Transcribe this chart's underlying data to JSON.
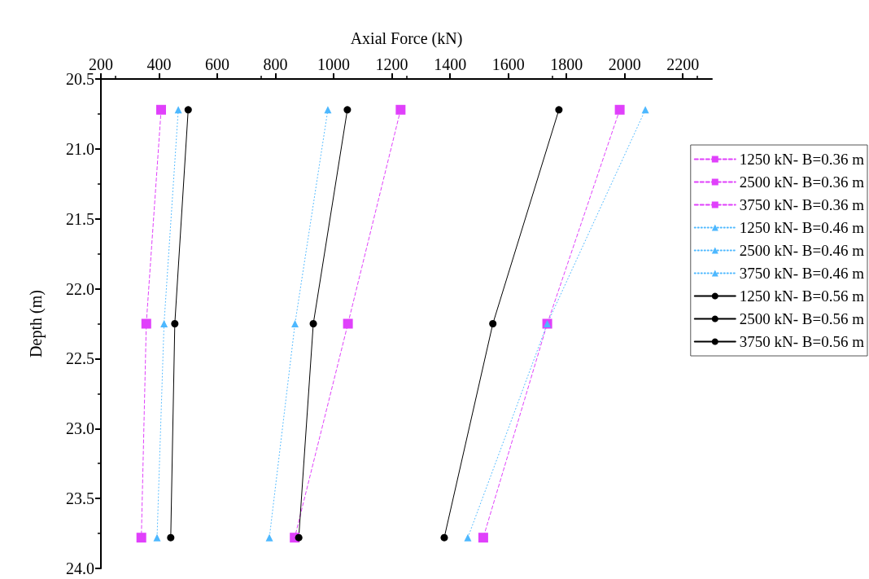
{
  "chart_data": {
    "type": "line",
    "xlabel": "Axial Force (kN)",
    "ylabel": "Depth (m)",
    "xlim": [
      200,
      2300
    ],
    "xticks": [
      200,
      400,
      600,
      800,
      1000,
      1200,
      1400,
      1600,
      1800,
      2000,
      2200
    ],
    "ylim": [
      24.0,
      20.5
    ],
    "yticks": [
      {
        "value": 20.5,
        "label": "20.5"
      },
      {
        "value": 21,
        "label": "21.0"
      },
      {
        "value": 21.5,
        "label": "21.5"
      },
      {
        "value": 22,
        "label": "22.0"
      },
      {
        "value": 22.5,
        "label": "22.5"
      },
      {
        "value": 23,
        "label": "23.0"
      },
      {
        "value": 23.5,
        "label": "23.5"
      },
      {
        "value": 24,
        "label": "24.0"
      }
    ],
    "grid": false,
    "legend": "right",
    "series": [
      {
        "name": "1250 kN- B=0.36 m",
        "color": "#e040fb",
        "marker": "square",
        "line_style": "dashed",
        "x": [
          407,
          356,
          339
        ],
        "values": [
          20.72,
          22.25,
          23.78
        ]
      },
      {
        "name": "2500 kN- B=0.36 m",
        "color": "#e040fb",
        "marker": "square",
        "line_style": "dashed",
        "x": [
          1230,
          1049,
          866
        ],
        "values": [
          20.72,
          22.25,
          23.78
        ]
      },
      {
        "name": "3750 kN- B=0.36 m",
        "color": "#e040fb",
        "marker": "square",
        "line_style": "dashed",
        "x": [
          1983,
          1734,
          1514
        ],
        "values": [
          20.72,
          22.25,
          23.78
        ]
      },
      {
        "name": "1250 kN- B=0.46 m",
        "color": "#4db8ff",
        "marker": "triangle",
        "line_style": "dotted",
        "x": [
          466,
          417,
          393
        ],
        "values": [
          20.72,
          22.25,
          23.78
        ]
      },
      {
        "name": "2500 kN- B=0.46 m",
        "color": "#4db8ff",
        "marker": "triangle",
        "line_style": "dotted",
        "x": [
          980,
          867,
          779
        ],
        "values": [
          20.72,
          22.25,
          23.78
        ]
      },
      {
        "name": "3750 kN- B=0.46 m",
        "color": "#4db8ff",
        "marker": "triangle",
        "line_style": "dotted",
        "x": [
          2071,
          1734,
          1461
        ],
        "values": [
          20.72,
          22.25,
          23.78
        ]
      },
      {
        "name": "1250 kN- B=0.56 m",
        "color": "#000000",
        "marker": "circle",
        "line_style": "solid",
        "x": [
          500,
          454,
          440
        ],
        "values": [
          20.72,
          22.25,
          23.78
        ]
      },
      {
        "name": "2500 kN- B=0.56 m",
        "color": "#000000",
        "marker": "circle",
        "line_style": "solid",
        "x": [
          1047,
          930,
          880
        ],
        "values": [
          20.72,
          22.25,
          23.78
        ]
      },
      {
        "name": "3750 kN- B=0.56 m",
        "color": "#000000",
        "marker": "circle",
        "line_style": "solid",
        "x": [
          1774,
          1547,
          1380
        ],
        "values": [
          20.72,
          22.25,
          23.78
        ]
      }
    ]
  }
}
